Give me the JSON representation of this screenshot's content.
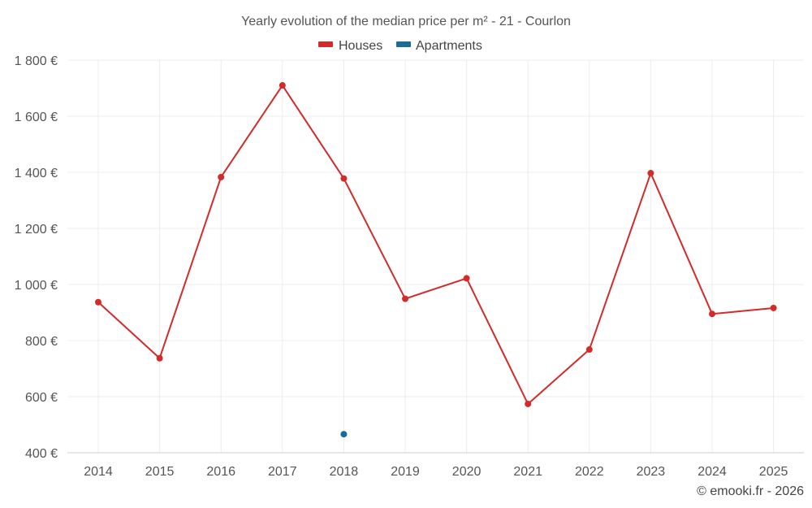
{
  "chart_data": {
    "type": "line",
    "title": "Yearly evolution of the median price per m² - 21 - Courlon",
    "categories": [
      "2014",
      "2015",
      "2016",
      "2017",
      "2018",
      "2019",
      "2020",
      "2021",
      "2022",
      "2023",
      "2024",
      "2025"
    ],
    "ylim": [
      400,
      1800
    ],
    "yticks": [
      400,
      600,
      800,
      1000,
      1200,
      1400,
      1600,
      1800
    ],
    "ytick_labels": [
      "400 €",
      "600 €",
      "800 €",
      "1 000 €",
      "1 200 €",
      "1 400 €",
      "1 600 €",
      "1 800 €"
    ],
    "grid": true,
    "legend_position": "top-center",
    "series": [
      {
        "name": "Houses",
        "color": "#d32a2a",
        "values": [
          937,
          737,
          1383,
          1710,
          1378,
          949,
          1022,
          574,
          768,
          1397,
          895,
          916
        ]
      },
      {
        "name": "Apartments",
        "color": "#1a6a9a",
        "values": [
          null,
          null,
          null,
          null,
          466,
          null,
          null,
          null,
          null,
          null,
          null,
          null
        ]
      }
    ]
  },
  "credit": "© emooki.fr - 2026"
}
